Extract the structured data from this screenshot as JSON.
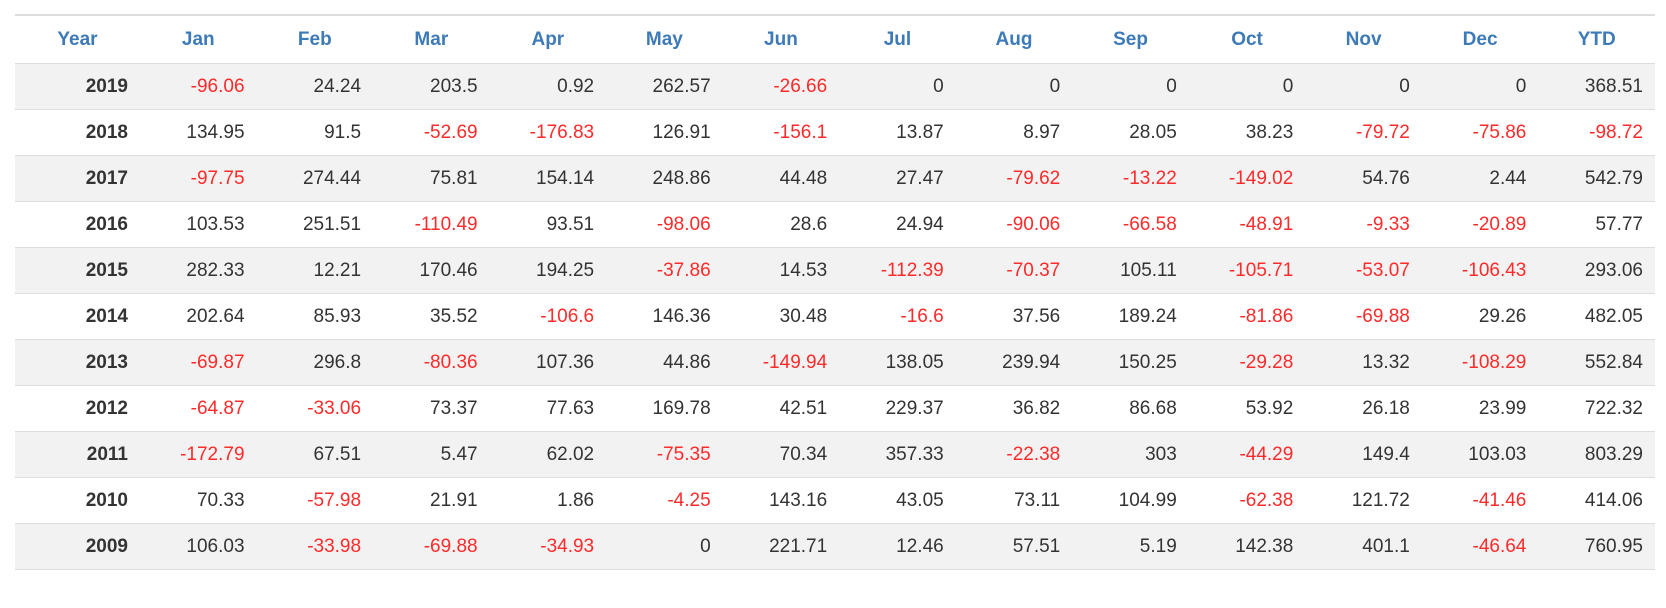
{
  "table": {
    "header": [
      "Year",
      "Jan",
      "Feb",
      "Mar",
      "Apr",
      "May",
      "Jun",
      "Jul",
      "Aug",
      "Sep",
      "Oct",
      "Nov",
      "Dec",
      "YTD"
    ],
    "rows": [
      [
        2019,
        -96.06,
        24.24,
        203.5,
        0.92,
        262.57,
        -26.66,
        0,
        0,
        0,
        0,
        0,
        0,
        368.51
      ],
      [
        2018,
        134.95,
        91.5,
        -52.69,
        -176.83,
        126.91,
        -156.1,
        13.87,
        8.97,
        28.05,
        38.23,
        -79.72,
        -75.86,
        -98.72
      ],
      [
        2017,
        -97.75,
        274.44,
        75.81,
        154.14,
        248.86,
        44.48,
        27.47,
        -79.62,
        -13.22,
        -149.02,
        54.76,
        2.44,
        542.79
      ],
      [
        2016,
        103.53,
        251.51,
        -110.49,
        93.51,
        -98.06,
        28.6,
        24.94,
        -90.06,
        -66.58,
        -48.91,
        -9.33,
        -20.89,
        57.77
      ],
      [
        2015,
        282.33,
        12.21,
        170.46,
        194.25,
        -37.86,
        14.53,
        -112.39,
        -70.37,
        105.11,
        -105.71,
        -53.07,
        -106.43,
        293.06
      ],
      [
        2014,
        202.64,
        85.93,
        35.52,
        -106.6,
        146.36,
        30.48,
        -16.6,
        37.56,
        189.24,
        -81.86,
        -69.88,
        29.26,
        482.05
      ],
      [
        2013,
        -69.87,
        296.8,
        -80.36,
        107.36,
        44.86,
        -149.94,
        138.05,
        239.94,
        150.25,
        -29.28,
        13.32,
        -108.29,
        552.84
      ],
      [
        2012,
        -64.87,
        -33.06,
        73.37,
        77.63,
        169.78,
        42.51,
        229.37,
        36.82,
        86.68,
        53.92,
        26.18,
        23.99,
        722.32
      ],
      [
        2011,
        -172.79,
        67.51,
        5.47,
        62.02,
        -75.35,
        70.34,
        357.33,
        -22.38,
        303,
        -44.29,
        149.4,
        103.03,
        803.29
      ],
      [
        2010,
        70.33,
        -57.98,
        21.91,
        1.86,
        -4.25,
        143.16,
        43.05,
        73.11,
        104.99,
        -62.38,
        121.72,
        -41.46,
        414.06
      ],
      [
        2009,
        106.03,
        -33.98,
        -69.88,
        -34.93,
        0,
        221.71,
        12.46,
        57.51,
        5.19,
        142.38,
        401.1,
        -46.64,
        760.95
      ]
    ]
  }
}
